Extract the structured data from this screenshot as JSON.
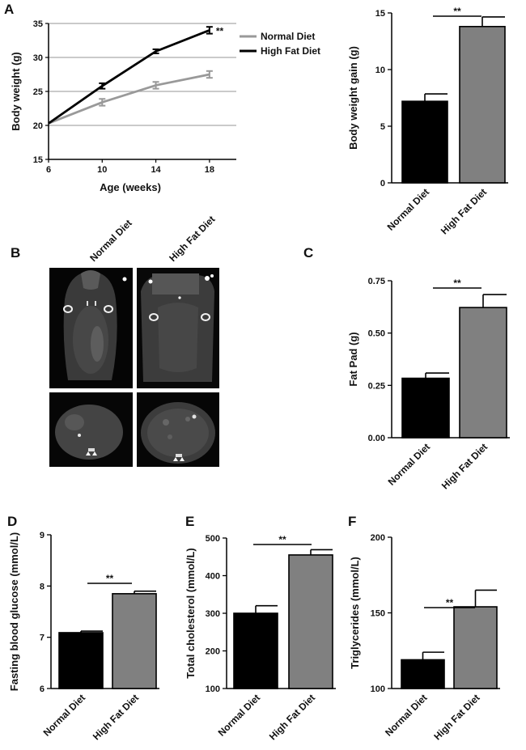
{
  "panels": {
    "a": "A",
    "b": "B",
    "c": "C",
    "d": "D",
    "e": "E",
    "f": "F"
  },
  "colors": {
    "normal": "#999999",
    "hfd": "#000000",
    "grid": "#aaaaaa",
    "text": "#111111",
    "bar_normal": "#000000",
    "bar_hfd": "#808080"
  },
  "imaging": {
    "col_labels": [
      "Normal Diet",
      "High Fat Diet"
    ]
  },
  "chart_data": [
    {
      "id": "A-line",
      "type": "line",
      "x": [
        6,
        10,
        14,
        18
      ],
      "xticks": [
        "6",
        "10",
        "14",
        "18"
      ],
      "xlim": [
        6,
        20
      ],
      "ylim": [
        15,
        35
      ],
      "yticks": [
        "15",
        "20",
        "25",
        "30",
        "35"
      ],
      "xlabel": "Age (weeks)",
      "ylabel": "Body weight (g)",
      "grid": true,
      "legend": "top-right",
      "series": [
        {
          "name": "Normal Diet",
          "color": "#999999",
          "values": [
            20.3,
            23.4,
            25.9,
            27.5
          ],
          "err": [
            0.3,
            0.5,
            0.5,
            0.5
          ]
        },
        {
          "name": "High Fat Diet",
          "color": "#000000",
          "values": [
            20.3,
            25.8,
            30.9,
            34.0
          ],
          "err": [
            0.3,
            0.4,
            0.3,
            0.5
          ]
        }
      ],
      "annotation": "**"
    },
    {
      "id": "A-bar",
      "type": "bar",
      "categories": [
        "Normal Diet",
        "High Fat Diet"
      ],
      "values": [
        7.2,
        13.8
      ],
      "err": [
        0.65,
        0.85
      ],
      "ylim": [
        0,
        15
      ],
      "yticks": [
        "0",
        "5",
        "10",
        "15"
      ],
      "ylabel": "Body weight gain (g)",
      "annotation": "**"
    },
    {
      "id": "C",
      "type": "bar",
      "categories": [
        "Normal Diet",
        "High Fat Diet"
      ],
      "values": [
        0.284,
        0.622
      ],
      "err": [
        0.025,
        0.062
      ],
      "ylim": [
        0,
        0.75
      ],
      "yticks": [
        "0.00",
        "0.25",
        "0.50",
        "0.75"
      ],
      "ylabel": "Fat Pad (g)",
      "annotation": "**"
    },
    {
      "id": "D",
      "type": "bar",
      "categories": [
        "Normal Diet",
        "High Fat Diet"
      ],
      "values": [
        7.09,
        7.85
      ],
      "err": [
        0.03,
        0.05
      ],
      "ylim": [
        6,
        9
      ],
      "yticks": [
        "6",
        "7",
        "8",
        "9"
      ],
      "ylabel": "Fasting blood glucose (mmol/L)",
      "annotation": "**"
    },
    {
      "id": "E",
      "type": "bar",
      "categories": [
        "Normal Diet",
        "High Fat Diet"
      ],
      "values": [
        300,
        455
      ],
      "err": [
        20,
        14
      ],
      "ylim": [
        100,
        500
      ],
      "yticks": [
        "100",
        "200",
        "300",
        "400",
        "500"
      ],
      "ylabel": "Total cholesterol (mmol/L)",
      "annotation": "**"
    },
    {
      "id": "F",
      "type": "bar",
      "categories": [
        "Normal Diet",
        "High Fat Diet"
      ],
      "values": [
        119,
        154
      ],
      "err": [
        5,
        11
      ],
      "ylim": [
        100,
        200
      ],
      "yticks": [
        "100",
        "150",
        "200"
      ],
      "ylabel": "Triglycerides (mmol/L)",
      "annotation": "**"
    }
  ]
}
